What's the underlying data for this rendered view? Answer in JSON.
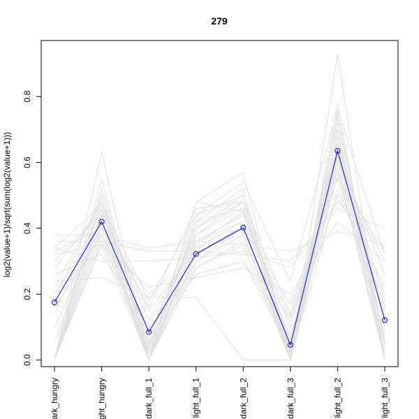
{
  "chart_data": {
    "type": "line",
    "title": "279",
    "ylabel": "log2(value+1)/sqrt(sum(log2(value+1)))",
    "xlabel": "",
    "categories": [
      "dark_hungry",
      "light_hungry",
      "dark_full_1",
      "light_full_1",
      "dark_full_2",
      "dark_full_3",
      "light_full_2",
      "light_full_3"
    ],
    "ylim": [
      -0.02,
      0.97
    ],
    "yticks": [
      0.0,
      0.2,
      0.4,
      0.6,
      0.8
    ],
    "ytick_labels": [
      "0.0",
      "0.2",
      "0.4",
      "0.6",
      "0.8"
    ],
    "grid": false,
    "highlight": {
      "color": "#0000ff",
      "values": [
        0.175,
        0.42,
        0.085,
        0.322,
        0.402,
        0.046,
        0.635,
        0.121
      ]
    },
    "background_series_color": "#e0e0e0",
    "background_series": [
      [
        0.0,
        0.42,
        0.0,
        0.32,
        0.41,
        0.0,
        0.64,
        0.0
      ],
      [
        0.0,
        0.45,
        0.0,
        0.35,
        0.45,
        0.0,
        0.7,
        0.0
      ],
      [
        0.0,
        0.4,
        0.0,
        0.3,
        0.38,
        0.0,
        0.6,
        0.0
      ],
      [
        0.0,
        0.5,
        0.0,
        0.38,
        0.48,
        0.0,
        0.75,
        0.0
      ],
      [
        0.0,
        0.48,
        0.02,
        0.4,
        0.5,
        0.02,
        0.68,
        0.05
      ],
      [
        0.0,
        0.38,
        0.0,
        0.28,
        0.35,
        0.0,
        0.58,
        0.0
      ],
      [
        0.0,
        0.55,
        0.0,
        0.42,
        0.52,
        0.0,
        0.78,
        0.0
      ],
      [
        0.0,
        0.63,
        0.0,
        0.48,
        0.57,
        0.0,
        0.93,
        0.0
      ],
      [
        0.0,
        0.36,
        0.05,
        0.26,
        0.3,
        0.03,
        0.56,
        0.08
      ],
      [
        0.38,
        0.38,
        0.34,
        0.36,
        0.35,
        0.33,
        0.39,
        0.35
      ],
      [
        0.36,
        0.36,
        0.33,
        0.33,
        0.32,
        0.3,
        0.46,
        0.4
      ],
      [
        0.34,
        0.3,
        0.3,
        0.31,
        0.33,
        0.28,
        0.48,
        0.34
      ],
      [
        0.33,
        0.4,
        0.2,
        0.32,
        0.4,
        0.17,
        0.55,
        0.33
      ],
      [
        0.3,
        0.44,
        0.15,
        0.34,
        0.42,
        0.13,
        0.6,
        0.3
      ],
      [
        0.28,
        0.46,
        0.12,
        0.36,
        0.44,
        0.1,
        0.62,
        0.26
      ],
      [
        0.26,
        0.32,
        0.1,
        0.26,
        0.3,
        0.08,
        0.5,
        0.22
      ],
      [
        0.24,
        0.25,
        0.19,
        0.19,
        0.0,
        0.0,
        0.52,
        0.2
      ],
      [
        0.22,
        0.48,
        0.08,
        0.38,
        0.46,
        0.06,
        0.66,
        0.18
      ],
      [
        0.2,
        0.42,
        0.06,
        0.3,
        0.4,
        0.04,
        0.63,
        0.14
      ],
      [
        0.18,
        0.5,
        0.04,
        0.4,
        0.48,
        0.03,
        0.72,
        0.1
      ],
      [
        0.16,
        0.38,
        0.1,
        0.28,
        0.36,
        0.12,
        0.58,
        0.16
      ],
      [
        0.34,
        0.47,
        0.18,
        0.44,
        0.54,
        0.24,
        0.76,
        0.32
      ],
      [
        0.32,
        0.35,
        0.22,
        0.25,
        0.28,
        0.2,
        0.42,
        0.3
      ],
      [
        0.14,
        0.46,
        0.03,
        0.42,
        0.46,
        0.02,
        0.7,
        0.06
      ],
      [
        0.1,
        0.4,
        0.02,
        0.34,
        0.38,
        0.01,
        0.62,
        0.04
      ],
      [
        0.05,
        0.44,
        0.0,
        0.36,
        0.42,
        0.0,
        0.66,
        0.02
      ],
      [
        0.0,
        0.52,
        0.05,
        0.44,
        0.5,
        0.04,
        0.74,
        0.06
      ],
      [
        0.0,
        0.44,
        0.16,
        0.46,
        0.48,
        0.14,
        0.64,
        0.12
      ],
      [
        0.0,
        0.35,
        0.0,
        0.48,
        0.45,
        0.0,
        0.6,
        0.0
      ]
    ]
  }
}
